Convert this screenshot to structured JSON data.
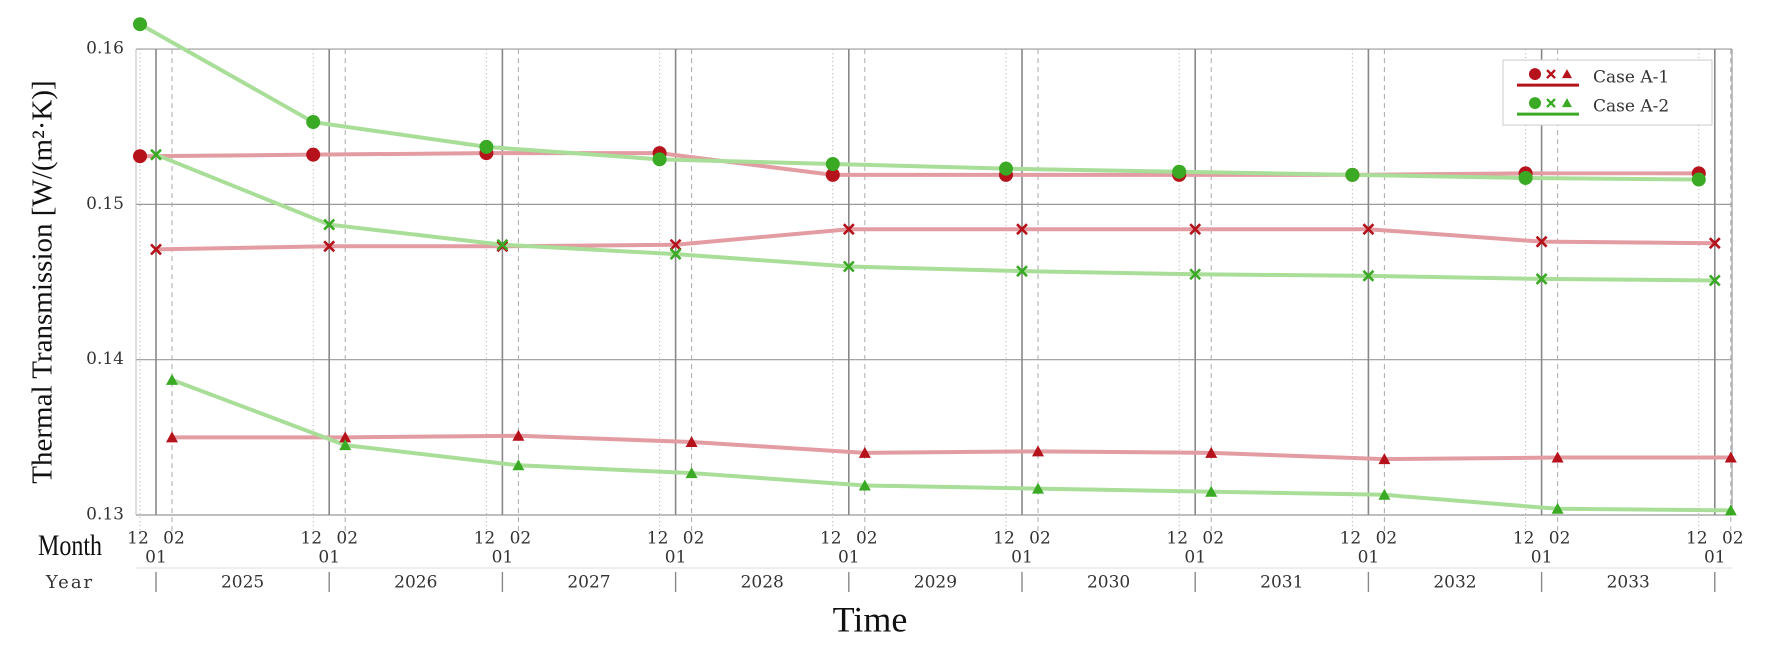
{
  "chart_data": {
    "type": "line",
    "xlabel": "Time",
    "ylabel": "Thermal Transmission [W/(m²·K)]",
    "month_row_label": "Month",
    "year_row_label": "Year",
    "months": [
      "12",
      "01",
      "02"
    ],
    "years": [
      "2025",
      "2026",
      "2027",
      "2028",
      "2029",
      "2030",
      "2031",
      "2032",
      "2033"
    ],
    "markers": [
      "circle",
      "cross",
      "triangle"
    ],
    "series": [
      {
        "name": "Case A-1",
        "color": "#b5121b",
        "line_color": "#e29ca2",
        "values": [
          [
            0.1531,
            0.1532,
            0.1533,
            0.1533,
            0.1519,
            0.1519,
            0.1519,
            0.1519,
            0.152,
            0.152
          ],
          [
            0.1471,
            0.1473,
            0.1473,
            0.1474,
            0.1484,
            0.1484,
            0.1484,
            0.1484,
            0.1476,
            0.1475
          ],
          [
            0.135,
            0.135,
            0.1351,
            0.1347,
            0.134,
            0.1341,
            0.134,
            0.1336,
            0.1337,
            0.1337
          ]
        ]
      },
      {
        "name": "Case A-2",
        "color": "#3aaa25",
        "line_color": "#a9de99",
        "values": [
          [
            0.1616,
            0.1553,
            0.1537,
            0.1529,
            0.1526,
            0.1523,
            0.1521,
            0.1519,
            0.1517,
            0.1516
          ],
          [
            0.1532,
            0.1487,
            0.1474,
            0.1468,
            0.146,
            0.1457,
            0.1455,
            0.1454,
            0.1452,
            0.1451
          ],
          [
            0.1387,
            0.1345,
            0.1332,
            0.1327,
            0.1319,
            0.1317,
            0.1315,
            0.1313,
            0.1304,
            0.1303
          ]
        ]
      }
    ],
    "ylim": [
      0.13,
      0.162
    ],
    "yticks": [
      0.13,
      0.14,
      0.15,
      0.16
    ],
    "grid": true,
    "legend": "upper right"
  }
}
